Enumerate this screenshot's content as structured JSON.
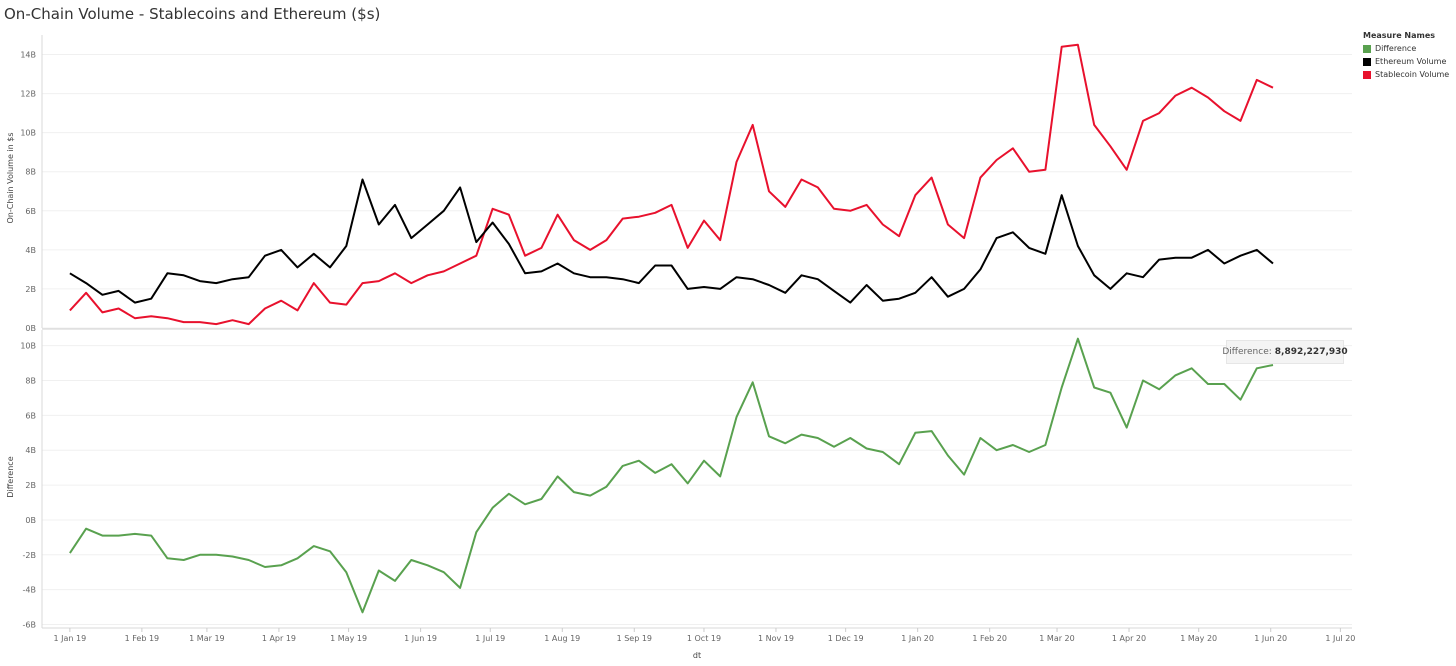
{
  "title": "On-Chain Volume - Stablecoins and Ethereum ($s)",
  "legend": {
    "title": "Measure Names",
    "items": [
      {
        "label": "Difference",
        "color": "#59a14f"
      },
      {
        "label": "Ethereum Volume",
        "color": "#000000"
      },
      {
        "label": "Stablecoin Volume",
        "color": "#e8112d"
      }
    ]
  },
  "tooltip": {
    "label": "Difference:",
    "value": "8,892,227,930"
  },
  "chart_data": [
    {
      "type": "line",
      "ylabel": "On-Chain Volume in $s",
      "ylim": [
        0,
        15
      ],
      "yticks": [
        0,
        2,
        4,
        6,
        8,
        10,
        12,
        14
      ],
      "ytick_labels": [
        "0B",
        "2B",
        "4B",
        "6B",
        "8B",
        "10B",
        "12B",
        "14B"
      ],
      "unit": "B",
      "grid": true,
      "x_start": "2019-01-01",
      "x_step_days": 7,
      "series": [
        {
          "name": "Stablecoin Volume",
          "color": "#e8112d",
          "values": [
            0.9,
            1.8,
            0.8,
            1.0,
            0.5,
            0.6,
            0.5,
            0.3,
            0.3,
            0.2,
            0.4,
            0.2,
            1.0,
            1.4,
            0.9,
            2.3,
            1.3,
            1.2,
            2.3,
            2.4,
            2.8,
            2.3,
            2.7,
            2.9,
            3.3,
            3.7,
            6.1,
            5.8,
            3.7,
            4.1,
            5.8,
            4.5,
            4.0,
            4.5,
            5.6,
            5.7,
            5.9,
            6.3,
            4.1,
            5.5,
            4.5,
            8.5,
            10.4,
            7.0,
            6.2,
            7.6,
            7.2,
            6.1,
            6.0,
            6.3,
            5.3,
            4.7,
            6.8,
            7.7,
            5.3,
            4.6,
            7.7,
            8.6,
            9.2,
            8.0,
            8.1,
            14.4,
            14.5,
            10.4,
            9.3,
            8.1,
            10.6,
            11.0,
            11.9,
            12.3,
            11.8,
            11.1,
            10.6,
            12.7,
            12.3
          ]
        },
        {
          "name": "Ethereum Volume",
          "color": "#000000",
          "values": [
            2.8,
            2.3,
            1.7,
            1.9,
            1.3,
            1.5,
            2.8,
            2.7,
            2.4,
            2.3,
            2.5,
            2.6,
            3.7,
            4.0,
            3.1,
            3.8,
            3.1,
            4.2,
            7.6,
            5.3,
            6.3,
            4.6,
            5.3,
            6.0,
            7.2,
            4.4,
            5.4,
            4.3,
            2.8,
            2.9,
            3.3,
            2.8,
            2.6,
            2.6,
            2.5,
            2.3,
            3.2,
            3.2,
            2.0,
            2.1,
            2.0,
            2.6,
            2.5,
            2.2,
            1.8,
            2.7,
            2.5,
            1.9,
            1.3,
            2.2,
            1.4,
            1.5,
            1.8,
            2.6,
            1.6,
            2.0,
            3.0,
            4.6,
            4.9,
            4.1,
            3.8,
            6.8,
            4.2,
            2.7,
            2.0,
            2.8,
            2.6,
            3.5,
            3.6,
            3.6,
            4.0,
            3.3,
            3.7,
            4.0,
            3.3
          ]
        }
      ]
    },
    {
      "type": "line",
      "ylabel": "Difference",
      "ylim": [
        -6.2,
        10.9
      ],
      "yticks": [
        -6,
        -4,
        -2,
        0,
        2,
        4,
        6,
        8,
        10
      ],
      "ytick_labels": [
        "-6B",
        "-4B",
        "-2B",
        "0B",
        "2B",
        "4B",
        "6B",
        "8B",
        "10B"
      ],
      "unit": "B",
      "grid": true,
      "xlabel": "dt",
      "x_ticks": [
        "2019-01-01",
        "2019-02-01",
        "2019-03-01",
        "2019-04-01",
        "2019-05-01",
        "2019-06-01",
        "2019-07-01",
        "2019-08-01",
        "2019-09-01",
        "2019-10-01",
        "2019-11-01",
        "2019-12-01",
        "2020-01-01",
        "2020-02-01",
        "2020-03-01",
        "2020-04-01",
        "2020-05-01",
        "2020-06-01",
        "2020-07-01"
      ],
      "x_tick_labels": [
        "1 Jan 19",
        "1 Feb 19",
        "1 Mar 19",
        "1 Apr 19",
        "1 May 19",
        "1 Jun 19",
        "1 Jul 19",
        "1 Aug 19",
        "1 Sep 19",
        "1 Oct 19",
        "1 Nov 19",
        "1 Dec 19",
        "1 Jan 20",
        "1 Feb 20",
        "1 Mar 20",
        "1 Apr 20",
        "1 May 20",
        "1 Jun 20",
        "1 Jul 20"
      ],
      "x_start": "2019-01-01",
      "x_step_days": 7,
      "series": [
        {
          "name": "Difference",
          "color": "#59a14f",
          "values": [
            -1.9,
            -0.5,
            -0.9,
            -0.9,
            -0.8,
            -0.9,
            -2.2,
            -2.3,
            -2.0,
            -2.0,
            -2.1,
            -2.3,
            -2.7,
            -2.6,
            -2.2,
            -1.5,
            -1.8,
            -3.0,
            -5.3,
            -2.9,
            -3.5,
            -2.3,
            -2.6,
            -3.0,
            -3.9,
            -0.7,
            0.7,
            1.5,
            0.9,
            1.2,
            2.5,
            1.6,
            1.4,
            1.9,
            3.1,
            3.4,
            2.7,
            3.2,
            2.1,
            3.4,
            2.5,
            5.9,
            7.9,
            4.8,
            4.4,
            4.9,
            4.7,
            4.2,
            4.7,
            4.1,
            3.9,
            3.2,
            5.0,
            5.1,
            3.7,
            2.6,
            4.7,
            4.0,
            4.3,
            3.9,
            4.3,
            7.6,
            10.4,
            7.6,
            7.3,
            5.3,
            8.0,
            7.5,
            8.3,
            8.7,
            7.8,
            7.8,
            6.9,
            8.7,
            8.89
          ]
        }
      ]
    }
  ]
}
